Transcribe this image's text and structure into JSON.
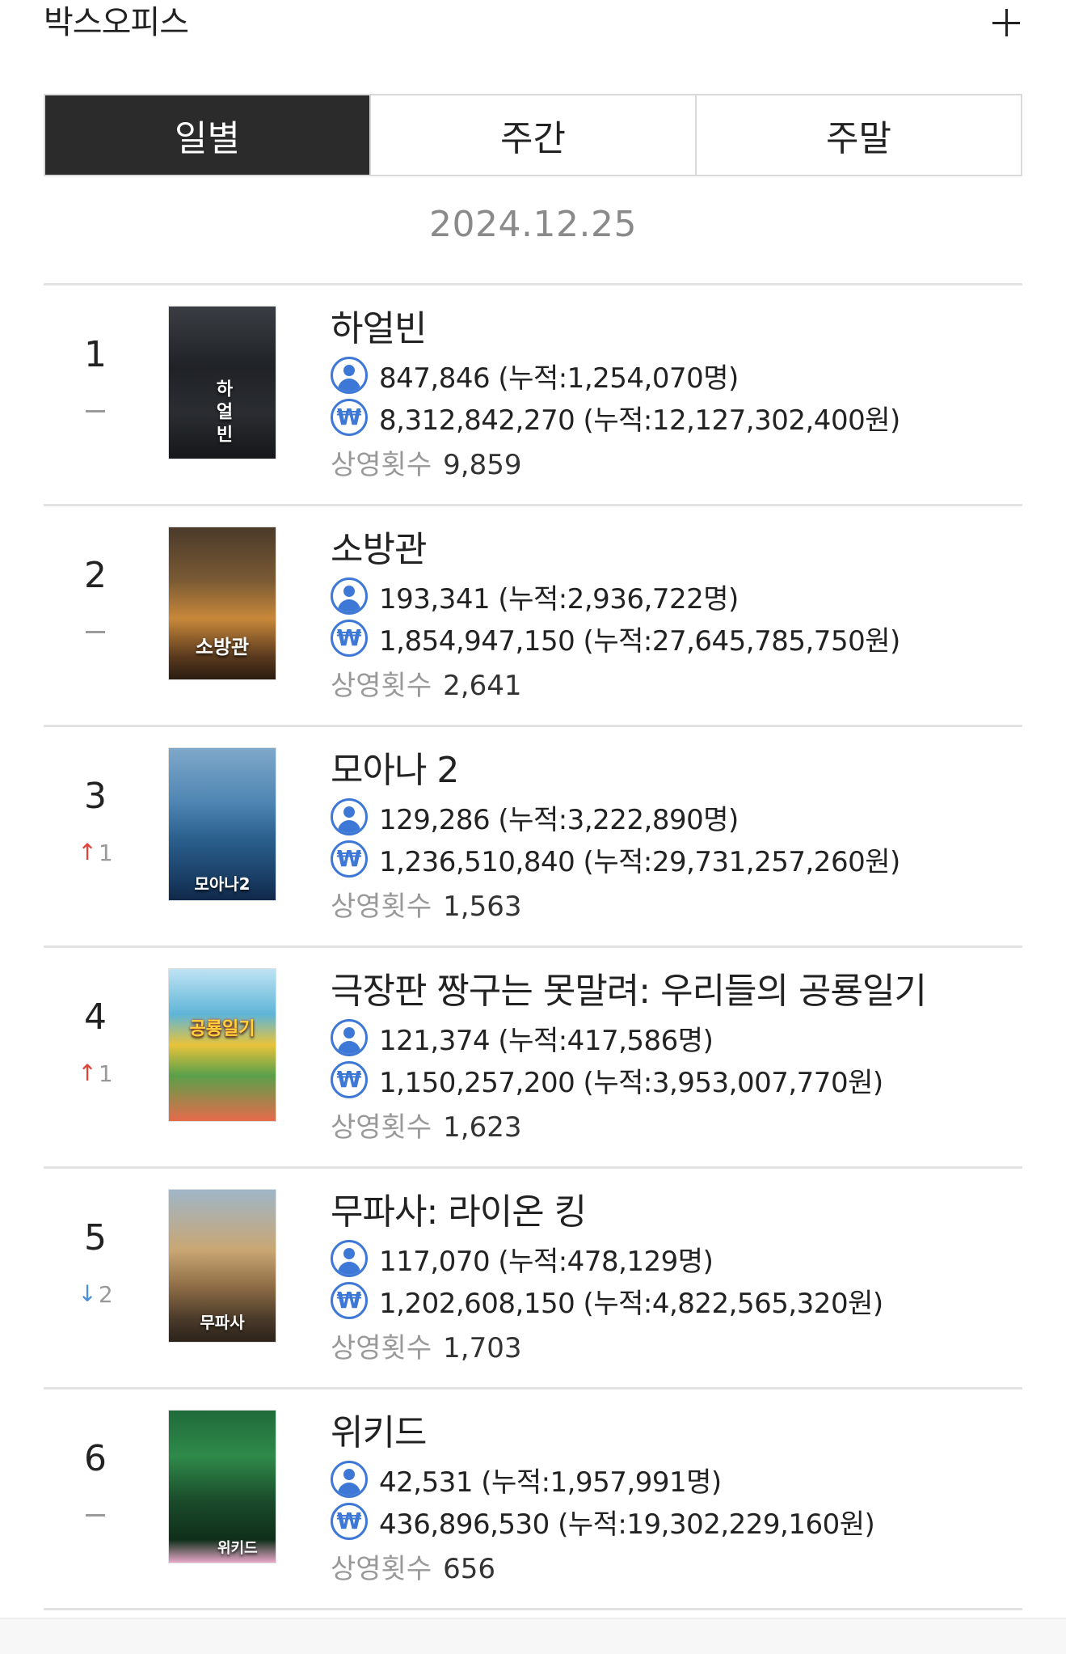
{
  "header": {
    "title": "박스오피스",
    "plus_label": "+"
  },
  "tabs": [
    {
      "label": "일별",
      "active": true
    },
    {
      "label": "주간",
      "active": false
    },
    {
      "label": "주말",
      "active": false
    }
  ],
  "date": "2024.12.25",
  "colors": {
    "accent_blue": "#3e78d6",
    "up_red": "#e4413a",
    "down_blue": "#4a8fd9",
    "active_tab": "#2b2b2b"
  },
  "movies": [
    {
      "rank": "1",
      "change": {
        "dir": "none",
        "value": ""
      },
      "title": "하얼빈",
      "poster_text": "하얼빈",
      "audience": "847,846 (누적:1,254,070명)",
      "sales": "8,312,842,270 (누적:12,127,302,400원)",
      "shows_label": "상영횟수",
      "shows": "9,859"
    },
    {
      "rank": "2",
      "change": {
        "dir": "none",
        "value": ""
      },
      "title": "소방관",
      "poster_text": "소방관",
      "audience": "193,341 (누적:2,936,722명)",
      "sales": "1,854,947,150 (누적:27,645,785,750원)",
      "shows_label": "상영횟수",
      "shows": "2,641"
    },
    {
      "rank": "3",
      "change": {
        "dir": "up",
        "value": "1"
      },
      "title": "모아나 2",
      "poster_text": "모아나2",
      "audience": "129,286 (누적:3,222,890명)",
      "sales": "1,236,510,840 (누적:29,731,257,260원)",
      "shows_label": "상영횟수",
      "shows": "1,563"
    },
    {
      "rank": "4",
      "change": {
        "dir": "up",
        "value": "1"
      },
      "title": "극장판 짱구는 못말려: 우리들의 공룡일기",
      "poster_text": "공룡일기",
      "audience": "121,374 (누적:417,586명)",
      "sales": "1,150,257,200 (누적:3,953,007,770원)",
      "shows_label": "상영횟수",
      "shows": "1,623"
    },
    {
      "rank": "5",
      "change": {
        "dir": "down",
        "value": "2"
      },
      "title": "무파사: 라이온 킹",
      "poster_text": "무파사",
      "audience": "117,070 (누적:478,129명)",
      "sales": "1,202,608,150 (누적:4,822,565,320원)",
      "shows_label": "상영횟수",
      "shows": "1,703"
    },
    {
      "rank": "6",
      "change": {
        "dir": "none",
        "value": ""
      },
      "title": "위키드",
      "poster_text": "위키드",
      "audience": "42,531 (누적:1,957,991명)",
      "sales": "436,896,530 (누적:19,302,229,160원)",
      "shows_label": "상영횟수",
      "shows": "656"
    }
  ]
}
